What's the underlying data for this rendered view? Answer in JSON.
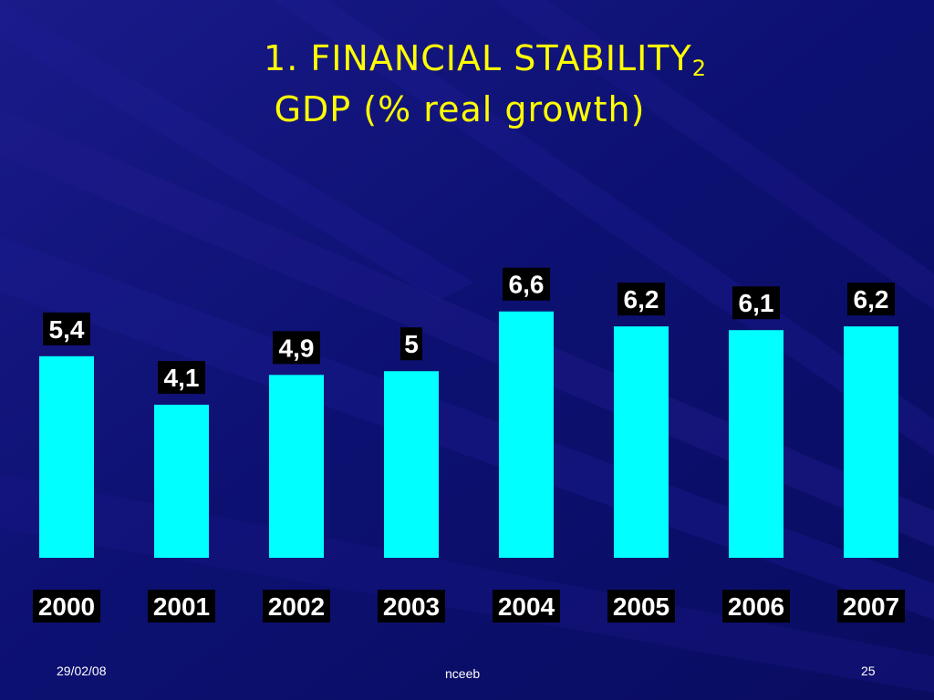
{
  "slide": {
    "title": "1. FINANCIAL STABILITY",
    "title_sub": "2",
    "subtitle": "GDP (% real growth)",
    "footer_date": "29/02/08",
    "footer_center": "nceeb",
    "page_number": "25"
  },
  "colors": {
    "background": "#0a0f6e",
    "bar": "#00ffff",
    "title": "#ffff00",
    "label_bg": "#000000",
    "label_text": "#ffffff"
  },
  "chart_data": {
    "type": "bar",
    "categories": [
      "2000",
      "2001",
      "2002",
      "2003",
      "2004",
      "2005",
      "2006",
      "2007"
    ],
    "values": [
      5.4,
      4.1,
      4.9,
      5,
      6.6,
      6.2,
      6.1,
      6.2
    ],
    "data_labels": [
      "5,4",
      "4,1",
      "4,9",
      "5",
      "6,6",
      "6,2",
      "6,1",
      "6,2"
    ],
    "title": "GDP (% real growth)",
    "xlabel": "",
    "ylabel": "",
    "ylim": [
      0,
      10.5
    ],
    "grid": false,
    "legend": "none"
  }
}
